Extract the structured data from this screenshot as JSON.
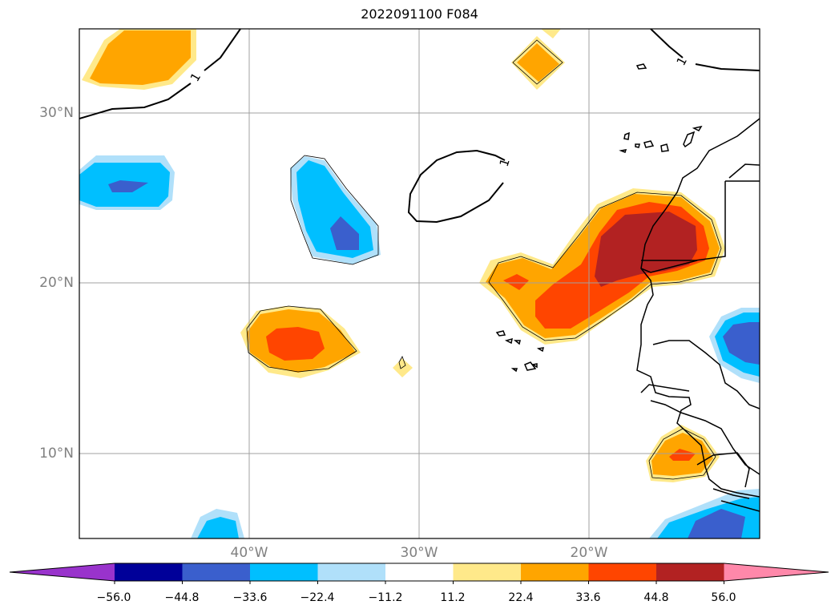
{
  "title": "2022091100 F084",
  "map": {
    "lat_labels": [
      "30°N",
      "20°N",
      "10°N"
    ],
    "lon_labels": [
      "40°W",
      "30°W",
      "20°W"
    ],
    "contour_label": "1"
  },
  "colorbar": {
    "colors": [
      "#9933cc",
      "#000099",
      "#3a5fcd",
      "#00bfff",
      "#b0e0fa",
      "#ffffff",
      "#ffe98a",
      "#ffa500",
      "#ff4500",
      "#b22222",
      "#ff88aa"
    ],
    "ticks": [
      "−56.0",
      "−44.8",
      "−33.6",
      "−22.4",
      "−11.2",
      "11.2",
      "22.4",
      "33.6",
      "44.8",
      "56.0"
    ]
  }
}
